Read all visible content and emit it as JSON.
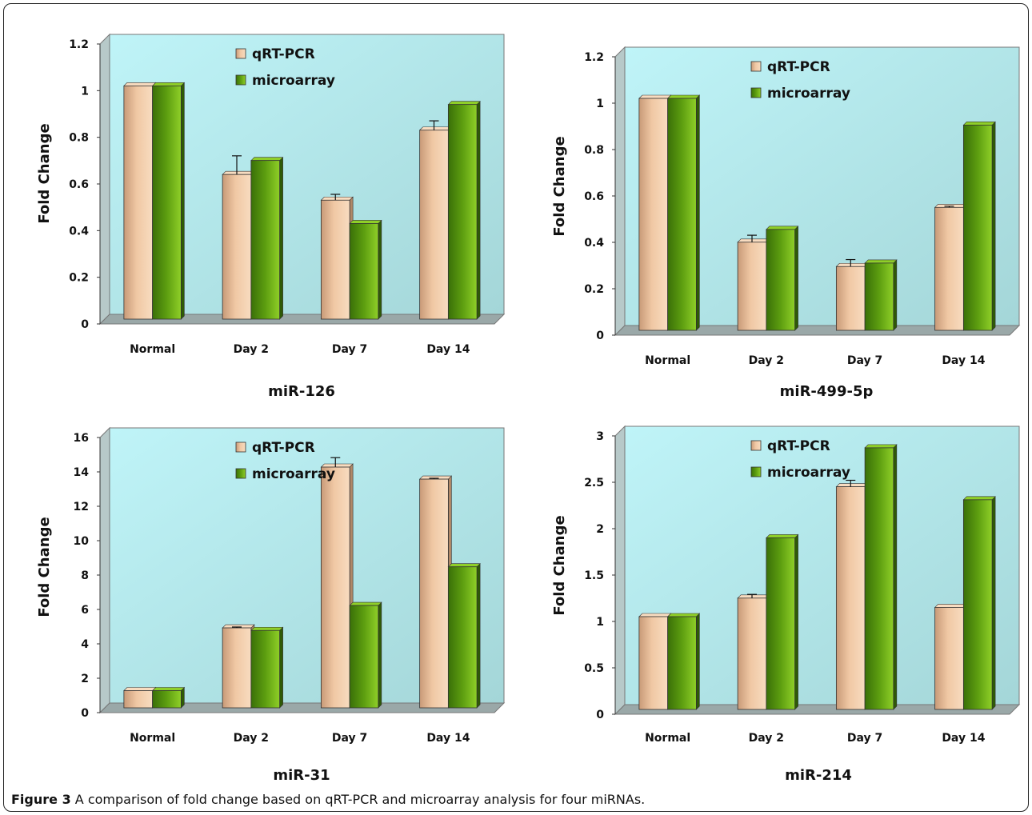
{
  "figure": {
    "caption_label": "Figure 3",
    "caption_text": " A comparison of fold change based on qRT-PCR and microarray analysis for four miRNAs."
  },
  "colors": {
    "qrt_pcr": "#f0c8a4",
    "microarray": "#5d9e10",
    "plot_bg_top": "#bff4f8",
    "plot_bg_bottom": "#a4d6d8"
  },
  "chart_data": [
    {
      "type": "bar",
      "title": "miR-126",
      "ylabel": "Fold Change",
      "categories": [
        "Normal",
        "Day 2",
        "Day 7",
        "Day 14"
      ],
      "ylim": [
        0,
        1.2
      ],
      "yticks": [
        "0",
        "0.2",
        "0.4",
        "0.6",
        "0.8",
        "1",
        "1.2"
      ],
      "legend_position": "top-center",
      "series": [
        {
          "name": "qRT-PCR",
          "values": [
            1.0,
            0.62,
            0.51,
            0.81
          ],
          "errors": [
            0,
            0.08,
            0.025,
            0.04
          ]
        },
        {
          "name": "microarray",
          "values": [
            1.0,
            0.68,
            0.41,
            0.92
          ],
          "errors": [
            0,
            0,
            0,
            0
          ]
        }
      ]
    },
    {
      "type": "bar",
      "title": "miR-499-5p",
      "ylabel": "Fold Change",
      "categories": [
        "Normal",
        "Day 2",
        "Day 7",
        "Day 14"
      ],
      "ylim": [
        0,
        1.2
      ],
      "yticks": [
        "0",
        "0.2",
        "0.4",
        "0.6",
        "0.8",
        "1",
        "1.2"
      ],
      "legend_position": "top-center",
      "series": [
        {
          "name": "qRT-PCR",
          "values": [
            1.0,
            0.38,
            0.275,
            0.53
          ],
          "errors": [
            0,
            0.03,
            0.03,
            0.005
          ]
        },
        {
          "name": "microarray",
          "values": [
            1.0,
            0.435,
            0.29,
            0.885
          ],
          "errors": [
            0,
            0,
            0,
            0
          ]
        }
      ]
    },
    {
      "type": "bar",
      "title": "miR-31",
      "ylabel": "Fold Change",
      "categories": [
        "Normal",
        "Day 2",
        "Day 7",
        "Day 14"
      ],
      "ylim": [
        0,
        16
      ],
      "yticks": [
        "0",
        "2",
        "4",
        "6",
        "8",
        "10",
        "12",
        "14",
        "16"
      ],
      "legend_position": "top-center",
      "series": [
        {
          "name": "qRT-PCR",
          "values": [
            1.0,
            4.65,
            14.0,
            13.3
          ],
          "errors": [
            0,
            0.05,
            0.55,
            0.05
          ]
        },
        {
          "name": "microarray",
          "values": [
            1.0,
            4.5,
            5.95,
            8.2
          ],
          "errors": [
            0,
            0,
            0,
            0
          ]
        }
      ]
    },
    {
      "type": "bar",
      "title": "miR-214",
      "ylabel": "Fold Change",
      "categories": [
        "Normal",
        "Day 2",
        "Day 7",
        "Day 14"
      ],
      "ylim": [
        0,
        3
      ],
      "yticks": [
        "0",
        "0.5",
        "1",
        "1.5",
        "2",
        "2.5",
        "3"
      ],
      "legend_position": "top-center",
      "series": [
        {
          "name": "qRT-PCR",
          "values": [
            1.0,
            1.2,
            2.4,
            1.1
          ],
          "errors": [
            0,
            0.04,
            0.07,
            0
          ]
        },
        {
          "name": "microarray",
          "values": [
            1.0,
            1.85,
            2.82,
            2.26
          ],
          "errors": [
            0,
            0,
            0,
            0
          ]
        }
      ]
    }
  ]
}
